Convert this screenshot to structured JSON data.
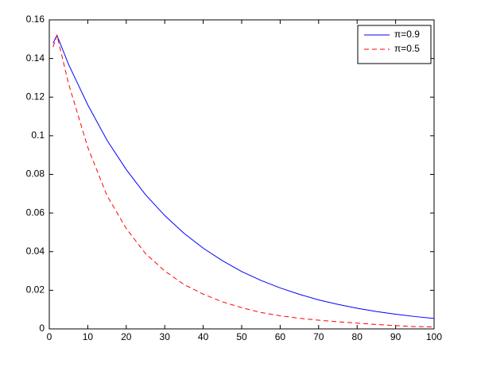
{
  "chart_data": {
    "type": "line",
    "x": [
      1,
      2,
      5,
      10,
      15,
      20,
      25,
      30,
      35,
      40,
      45,
      50,
      55,
      60,
      65,
      70,
      75,
      80,
      85,
      90,
      95,
      100
    ],
    "series": [
      {
        "name": "π=0.9",
        "color": "#0000ff",
        "dash": false,
        "values": [
          0.148,
          0.152,
          0.137,
          0.116,
          0.0977,
          0.0825,
          0.0695,
          0.0587,
          0.0495,
          0.0418,
          0.0353,
          0.0297,
          0.0251,
          0.0212,
          0.0179,
          0.015,
          0.0127,
          0.0107,
          0.009,
          0.0076,
          0.0064,
          0.0054
        ]
      },
      {
        "name": "π=0.5",
        "color": "#ff0000",
        "dash": true,
        "values": [
          0.146,
          0.152,
          0.127,
          0.094,
          0.069,
          0.052,
          0.039,
          0.03,
          0.023,
          0.018,
          0.014,
          0.011,
          0.0085,
          0.0068,
          0.0055,
          0.0045,
          0.0037,
          0.003,
          0.0023,
          0.0017,
          0.0012,
          0.001
        ]
      }
    ],
    "xlim": [
      0,
      100
    ],
    "xticks": [
      0,
      10,
      20,
      30,
      40,
      50,
      60,
      70,
      80,
      90,
      100
    ],
    "ylim": [
      0,
      0.16
    ],
    "yticks": [
      0,
      0.02,
      0.04,
      0.06,
      0.08,
      0.1,
      0.12,
      0.14,
      0.16
    ],
    "legend": "upper right"
  }
}
